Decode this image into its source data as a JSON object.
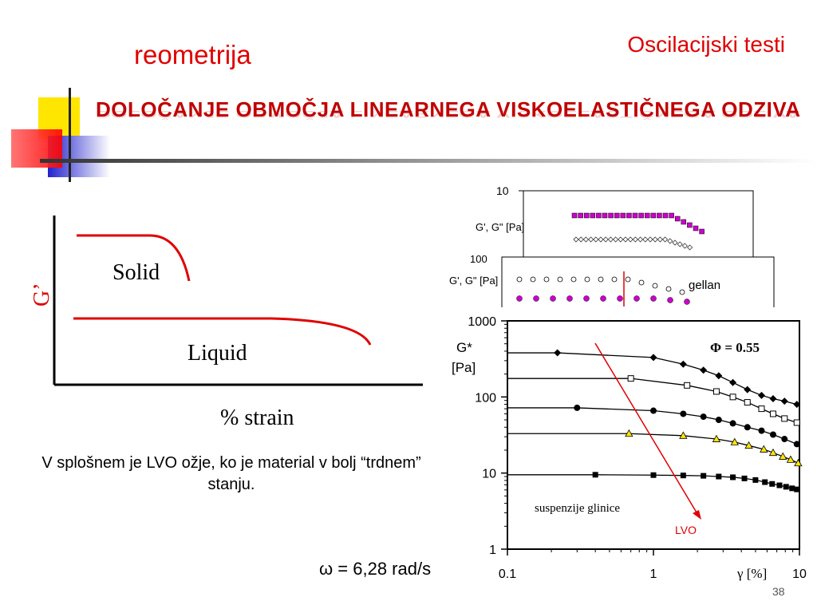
{
  "header": {
    "left_title": "reometrija",
    "right_title": "Oscilacijski testi"
  },
  "slide_title": "DOLOČANJE OBMOČJA LINEARNEGA VISKOELASTIČNEGA ODZIVA",
  "description": "V splošnem je LVO ožje, ko je material v bolj “trdnem” stanju.",
  "omega_label": "ω = 6,28 rad/s",
  "page_number": "38",
  "colors": {
    "accent_red": "#e00000",
    "magenta": "#cc00cc",
    "yellow": "#ffe600",
    "blue": "#3333cc"
  },
  "chart_data": [
    {
      "type": "line",
      "xlabel": "% strain",
      "ylabel": "G’",
      "series": [
        {
          "name": "Solid",
          "values": []
        },
        {
          "name": "Liquid",
          "values": []
        }
      ]
    },
    {
      "type": "scatter",
      "ylabel": "G', G\" [Pa]",
      "yticks": [
        "10"
      ],
      "log_y": true,
      "series": [
        {
          "values": []
        },
        {
          "values": []
        }
      ]
    },
    {
      "type": "scatter",
      "ylabel": "G', G\" [Pa]",
      "yticks": [
        "100"
      ],
      "log_y": true,
      "annotations": [
        "gellan"
      ],
      "series": [
        {
          "values": []
        },
        {
          "values": []
        }
      ]
    },
    {
      "type": "line",
      "ylabel": "G* [Pa]",
      "xlabel": "γ [%]",
      "log_x": true,
      "log_y": true,
      "xlim": [
        0.1,
        10
      ],
      "ylim": [
        1,
        1000
      ],
      "xticks": [
        "0.1",
        "1",
        "10"
      ],
      "yticks": [
        "1",
        "10",
        "100",
        "1000"
      ],
      "grid": false,
      "annotations": [
        "Φ = 0.55",
        "suspenzije glinice",
        "LVO"
      ],
      "series": [
        {
          "marker": "diamond-filled",
          "x": [
            0.22,
            1.0,
            1.6,
            2.2,
            2.8,
            3.5,
            4.4,
            5.5,
            6.6,
            7.9,
            9.6
          ],
          "y": [
            380,
            330,
            270,
            225,
            190,
            155,
            125,
            105,
            95,
            88,
            80
          ]
        },
        {
          "marker": "square-open",
          "x": [
            0.7,
            1.7,
            2.7,
            3.5,
            4.4,
            5.5,
            6.6,
            7.9,
            9.6
          ],
          "y": [
            175,
            142,
            118,
            100,
            85,
            70,
            60,
            52,
            46
          ]
        },
        {
          "marker": "circle-filled",
          "x": [
            0.3,
            1.0,
            1.6,
            2.2,
            2.8,
            3.5,
            4.4,
            5.5,
            6.6,
            7.9,
            9.6
          ],
          "y": [
            72,
            66,
            60,
            55,
            50,
            45,
            40,
            36,
            32,
            28,
            24
          ]
        },
        {
          "marker": "triangle-yellow",
          "x": [
            0.68,
            1.6,
            2.7,
            3.6,
            4.5,
            5.7,
            6.6,
            7.7,
            8.7,
            9.8
          ],
          "y": [
            33,
            31,
            28,
            25.5,
            23,
            20.5,
            18.5,
            16.5,
            15,
            13.5
          ]
        },
        {
          "marker": "square-filled",
          "x": [
            0.4,
            1.0,
            1.6,
            2.2,
            2.8,
            3.5,
            4.2,
            5.0,
            5.8,
            6.5,
            7.3,
            8.1,
            8.9,
            9.6
          ],
          "y": [
            9.5,
            9.4,
            9.3,
            9.2,
            9.0,
            8.8,
            8.5,
            8.1,
            7.6,
            7.2,
            6.9,
            6.6,
            6.3,
            6.1
          ]
        }
      ]
    }
  ]
}
